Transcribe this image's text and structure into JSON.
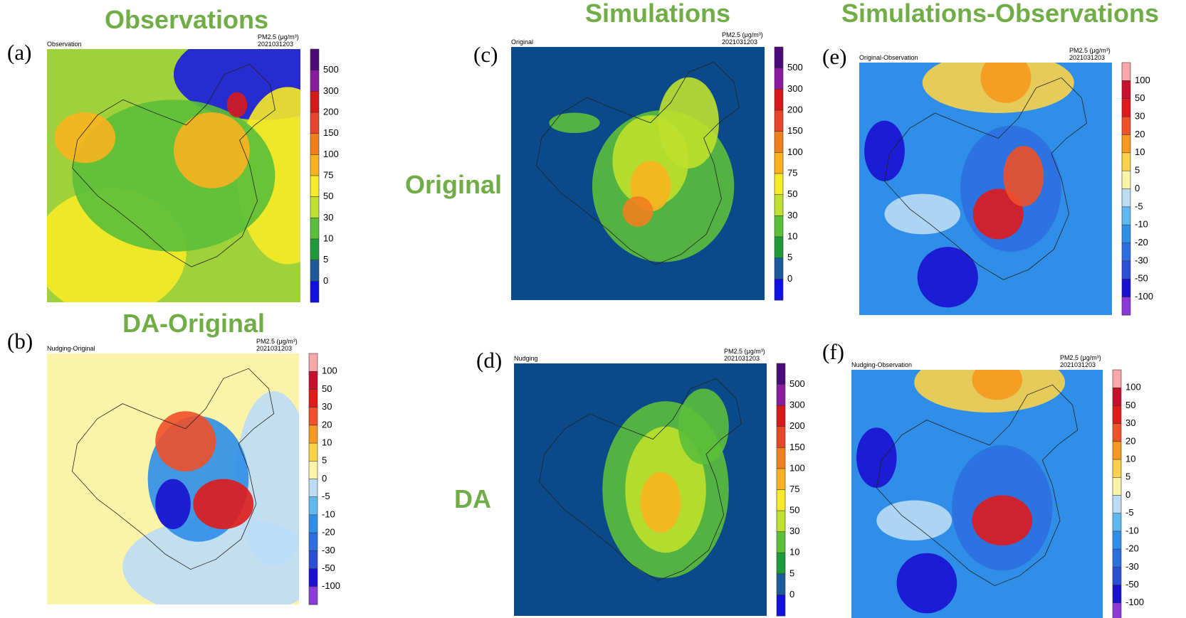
{
  "headings": {
    "observations": "Observations",
    "simulations": "Simulations",
    "simulations_observations": "Simulations-Observations",
    "da_original": "DA-Original",
    "original": "Original",
    "da": "DA"
  },
  "panels": [
    {
      "letter": "(a)",
      "name": "Observation",
      "unit": "PM2.5 (μg/m³)",
      "time": "2021031203",
      "colorbar": [
        "500",
        "300",
        "200",
        "150",
        "100",
        "75",
        "50",
        "30",
        "10",
        "5",
        "0"
      ]
    },
    {
      "letter": "(b)",
      "name": "Nudging-Original",
      "unit": "PM2.5 (μg/m³)",
      "time": "2021031203",
      "colorbar": [
        "100",
        "50",
        "30",
        "20",
        "10",
        "5",
        "0",
        "-5",
        "-10",
        "-20",
        "-30",
        "-50",
        "-100"
      ]
    },
    {
      "letter": "(c)",
      "name": "Original",
      "unit": "PM2.5 (μg/m³)",
      "time": "2021031203",
      "colorbar": [
        "500",
        "300",
        "200",
        "150",
        "100",
        "75",
        "50",
        "30",
        "10",
        "5",
        "0"
      ]
    },
    {
      "letter": "(d)",
      "name": "Nudging",
      "unit": "PM2.5 (μg/m³)",
      "time": "2021031203",
      "colorbar": [
        "500",
        "300",
        "200",
        "150",
        "100",
        "75",
        "50",
        "30",
        "10",
        "5",
        "0"
      ]
    },
    {
      "letter": "(e)",
      "name": "Original-Observation",
      "unit": "PM2.5 (μg/m³)",
      "time": "2021031203",
      "colorbar": [
        "100",
        "50",
        "30",
        "20",
        "10",
        "5",
        "0",
        "-5",
        "-10",
        "-20",
        "-30",
        "-50",
        "-100"
      ]
    },
    {
      "letter": "(f)",
      "name": "Nudging-Observation",
      "unit": "PM2.5 (μg/m³)",
      "time": "2021031203",
      "colorbar": [
        "100",
        "50",
        "30",
        "20",
        "10",
        "5",
        "0",
        "-5",
        "-10",
        "-20",
        "-30",
        "-50",
        "-100"
      ]
    }
  ]
}
